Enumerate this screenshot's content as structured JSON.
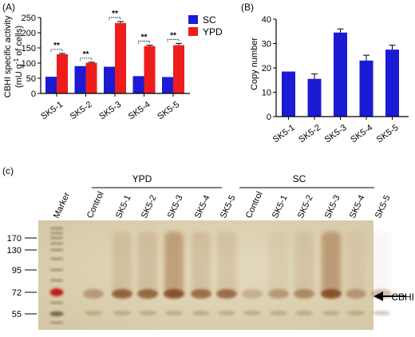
{
  "panel_labels": {
    "a": "(A)",
    "b": "(B)",
    "c": "(c)"
  },
  "colors": {
    "sc": "#1b1bd4",
    "ypd": "#ee1c1c",
    "error": "#000000",
    "gel_bg": "#ded3b6"
  },
  "chart_data": [
    {
      "type": "bar",
      "panel": "(A)",
      "categories": [
        "SK5-1",
        "SK5-2",
        "SK5-3",
        "SK5-4",
        "SK5-5"
      ],
      "series": [
        {
          "name": "SC",
          "values": [
            55,
            90,
            88,
            57,
            54
          ],
          "errors": [
            0,
            0,
            0,
            0,
            0
          ]
        },
        {
          "name": "YPD",
          "values": [
            129,
            101,
            232,
            156,
            159
          ],
          "errors": [
            3,
            2,
            5,
            3,
            6
          ]
        }
      ],
      "ylabel_line1": "CBHI specific activity",
      "ylabel_line2": "(mU g",
      "ylabel_sup": "-1",
      "ylabel_tail": " of cells)",
      "ylim": [
        0,
        250
      ],
      "yticks": [
        0,
        50,
        100,
        150,
        200,
        250
      ],
      "significance": [
        "**",
        "**",
        "**",
        "**",
        "**"
      ],
      "legend_position": "top-right",
      "grid": false
    },
    {
      "type": "bar",
      "panel": "(B)",
      "categories": [
        "SK5-1",
        "SK5-2",
        "SK5-3",
        "SK5-4",
        "SK5-5"
      ],
      "series": [
        {
          "values": [
            18.5,
            15.5,
            34.5,
            23,
            27.5
          ],
          "errors": [
            0,
            2,
            1.5,
            2.2,
            1.8
          ]
        }
      ],
      "ylabel": "Copy number",
      "ylim": [
        0,
        40
      ],
      "yticks": [
        0,
        10,
        20,
        30,
        40
      ],
      "grid": false
    }
  ],
  "gel": {
    "group_labels": [
      "YPD",
      "SC"
    ],
    "lanes": [
      "Marker",
      "Control",
      "SK5-1",
      "SK5-2",
      "SK5-3",
      "SK5-4",
      "SK5-5",
      "Control",
      "SK5-1",
      "SK5-2",
      "SK5-3",
      "SK5-4",
      "SK5-5"
    ],
    "marker_sizes": [
      "170",
      "130",
      "95",
      "72",
      "55"
    ],
    "band_label": "CBHI"
  }
}
